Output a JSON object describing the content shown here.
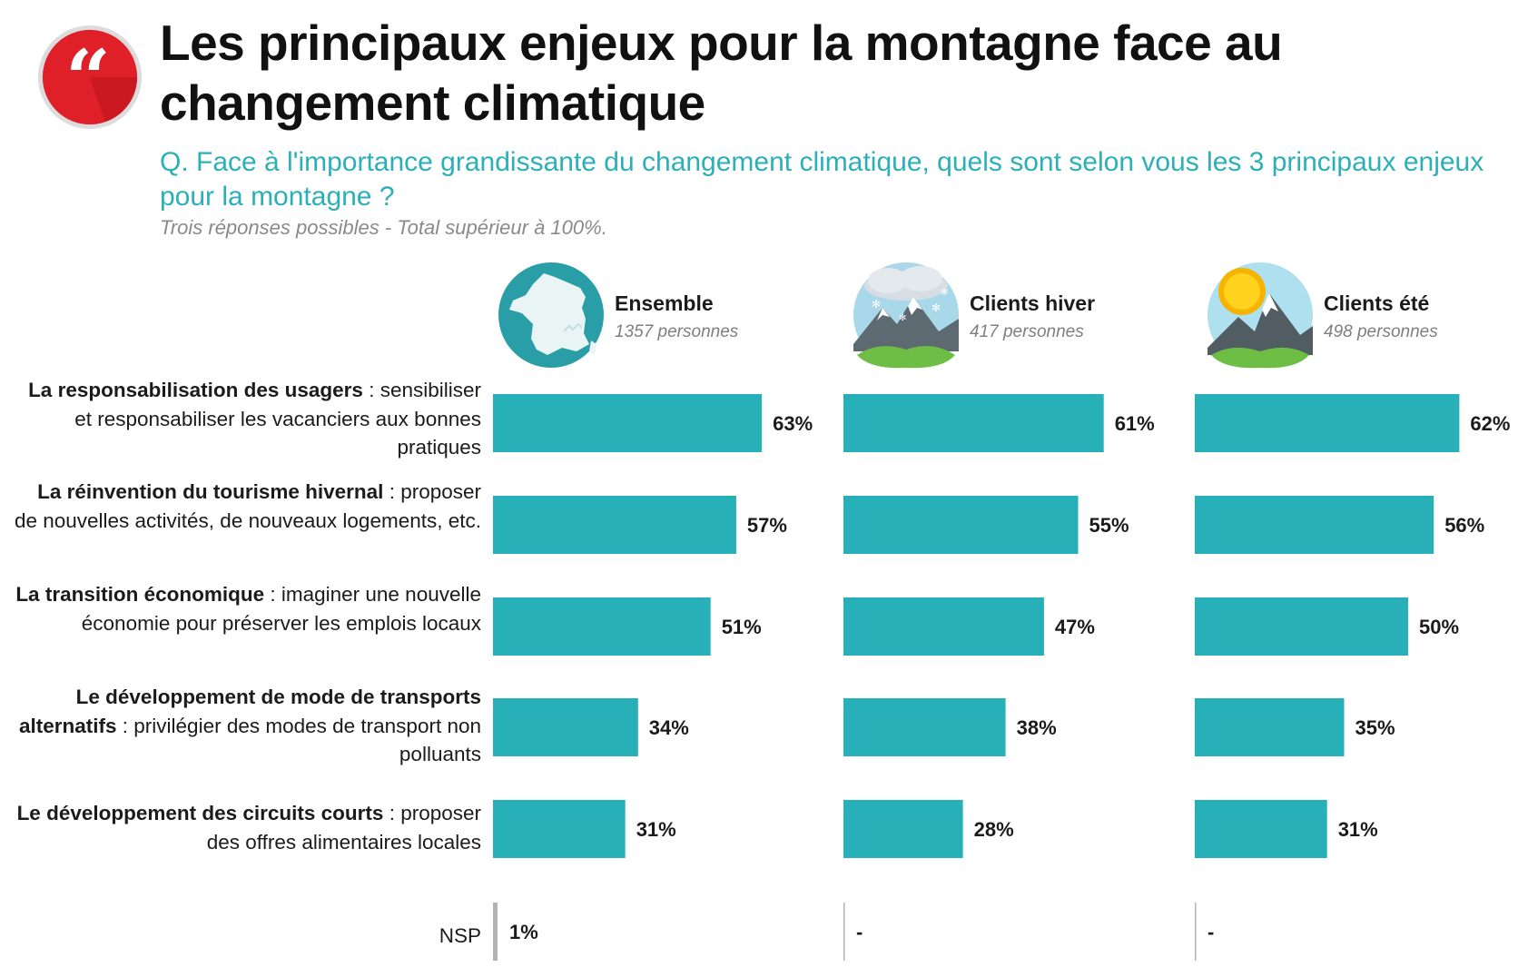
{
  "header": {
    "title": "Les principaux enjeux pour la montagne face au changement climatique",
    "question": "Q. Face à l'importance grandissante du changement climatique, quels sont selon vous les 3 principaux enjeux pour la montagne ?",
    "note": "Trois réponses possibles - Total supérieur à 100%."
  },
  "colors": {
    "bar": "#27b0b8",
    "accent": "#2bb0b8",
    "badge": "#e02028",
    "nsp_line": "#b3b3b3"
  },
  "icons": {
    "badge": "quote-icon",
    "ensemble": "france-map-icon",
    "hiver": "snowy-mountain-icon",
    "ete": "sunny-mountain-icon"
  },
  "rows": [
    {
      "bold": "La responsabilisation des usagers",
      "rest": " : sensibiliser et responsabiliser les vacanciers aux bonnes pratiques"
    },
    {
      "bold": "La réinvention du tourisme hivernal",
      "rest": " : proposer de nouvelles activités, de nouveaux logements, etc."
    },
    {
      "bold": "La transition économique",
      "rest": " : imaginer une nouvelle économie pour préserver les emplois locaux"
    },
    {
      "bold": "Le développement de mode de transports alternatifs",
      "rest": " : privilégier des modes de transport non polluants"
    },
    {
      "bold": "Le développement des circuits courts",
      "rest": " : proposer des offres alimentaires locales"
    }
  ],
  "chart_data": {
    "type": "bar",
    "orientation": "horizontal",
    "unit": "%",
    "categories": [
      "La responsabilisation des usagers : sensibiliser et responsabiliser les vacanciers aux bonnes pratiques",
      "La réinvention du tourisme hivernal : proposer de nouvelles activités, de nouveaux logements, etc.",
      "La transition économique : imaginer une nouvelle économie pour préserver les emplois locaux",
      "Le développement de mode de transports alternatifs : privilégier des modes de transport non polluants",
      "Le développement des circuits courts : proposer des offres alimentaires locales"
    ],
    "series": [
      {
        "name": "Ensemble",
        "subtitle": "1357 personnes",
        "values": [
          63,
          57,
          51,
          34,
          31
        ],
        "labels": [
          "63%",
          "57%",
          "51%",
          "34%",
          "31%"
        ],
        "nsp": "1%"
      },
      {
        "name": "Clients hiver",
        "subtitle": "417 personnes",
        "values": [
          61,
          55,
          47,
          38,
          28
        ],
        "labels": [
          "61%",
          "55%",
          "47%",
          "38%",
          "28%"
        ],
        "nsp": "-"
      },
      {
        "name": "Clients été",
        "subtitle": "498 personnes",
        "values": [
          62,
          56,
          50,
          35,
          31
        ],
        "labels": [
          "62%",
          "56%",
          "50%",
          "35%",
          "31%"
        ],
        "nsp": "-"
      }
    ],
    "nsp_label": "NSP",
    "nsp_value": 1,
    "xlim": [
      0,
      100
    ]
  }
}
